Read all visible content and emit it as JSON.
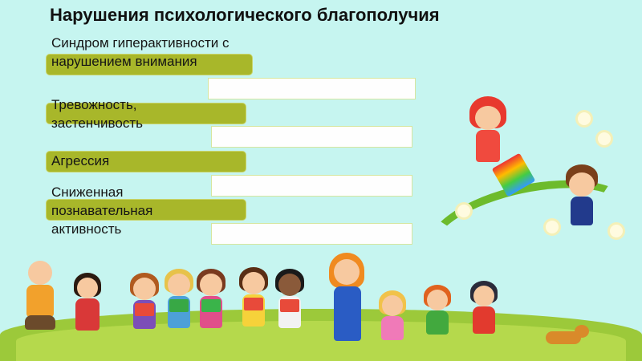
{
  "slide": {
    "title": "Нарушения психологического благополучия",
    "items": [
      {
        "label": "Синдром гиперактивности с нарушением внимания",
        "answer": ""
      },
      {
        "label": "Тревожность, застенчивость",
        "answer": ""
      },
      {
        "label": "Агрессия",
        "answer": ""
      },
      {
        "label": "Сниженная познавательная активность",
        "answer": ""
      }
    ]
  },
  "colors": {
    "background": "#c6f5f0",
    "bar": "#a8b72a",
    "box": "#fefefe",
    "grass": "#9cc93a"
  }
}
